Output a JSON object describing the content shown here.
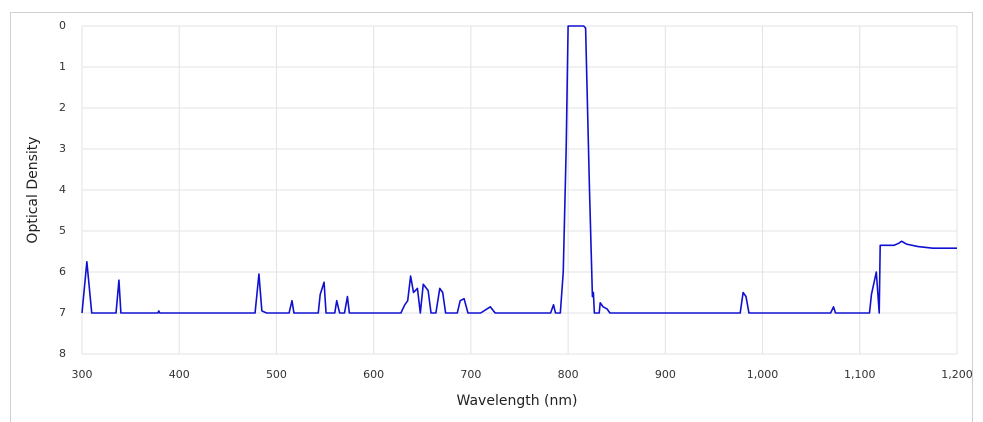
{
  "chart_data": {
    "type": "line",
    "x_label": "Wavelength (nm)",
    "y_label": "Optical Density",
    "x": [
      300,
      305,
      310,
      335,
      338,
      340,
      378,
      379,
      380,
      478,
      482,
      485,
      490,
      513,
      516,
      518,
      543,
      545,
      549,
      551,
      560,
      562,
      565,
      570,
      573,
      575,
      628,
      632,
      635,
      638,
      641,
      643,
      645,
      648,
      651,
      656,
      659,
      664,
      668,
      671,
      674,
      686,
      689,
      693,
      697,
      710,
      720,
      725,
      782,
      785,
      787,
      792,
      795,
      798,
      800,
      802,
      816,
      818,
      822,
      825,
      826,
      827,
      832,
      833,
      836,
      840,
      843,
      977,
      980,
      983,
      986,
      1070,
      1073,
      1075,
      1110,
      1112,
      1117,
      1120,
      1121,
      1135,
      1140,
      1143,
      1148,
      1160,
      1175,
      1200
    ],
    "values": [
      7,
      5.75,
      7,
      7,
      6.2,
      7,
      7,
      6.95,
      7,
      7,
      6.05,
      6.95,
      7,
      7,
      6.7,
      7,
      7,
      6.55,
      6.25,
      7,
      7,
      6.7,
      7,
      7,
      6.6,
      7,
      7,
      6.8,
      6.7,
      6.1,
      6.5,
      6.45,
      6.4,
      7,
      6.3,
      6.45,
      7,
      7,
      6.4,
      6.5,
      7,
      7,
      6.7,
      6.65,
      7,
      7,
      6.85,
      7,
      7,
      6.8,
      7,
      7,
      6,
      3,
      0,
      0,
      0,
      0.05,
      4,
      6.6,
      6.5,
      7,
      7,
      6.75,
      6.85,
      6.9,
      7,
      7,
      6.5,
      6.6,
      7,
      7,
      6.85,
      7,
      7,
      6.55,
      6,
      7,
      5.35,
      5.35,
      5.3,
      5.25,
      5.32,
      5.38,
      5.42,
      5.42
    ],
    "color": "#1010d0",
    "xlim": [
      300,
      1200
    ],
    "xticks": [
      300,
      400,
      500,
      600,
      700,
      800,
      900,
      {
        "value": 1000,
        "label": "1,000"
      },
      {
        "value": 1100,
        "label": "1,100"
      },
      {
        "value": 1200,
        "label": "1,200"
      }
    ],
    "ylim": [
      8,
      0
    ],
    "yticks": [
      0,
      1,
      2,
      3,
      4,
      5,
      6,
      7,
      8
    ],
    "grid": true
  }
}
